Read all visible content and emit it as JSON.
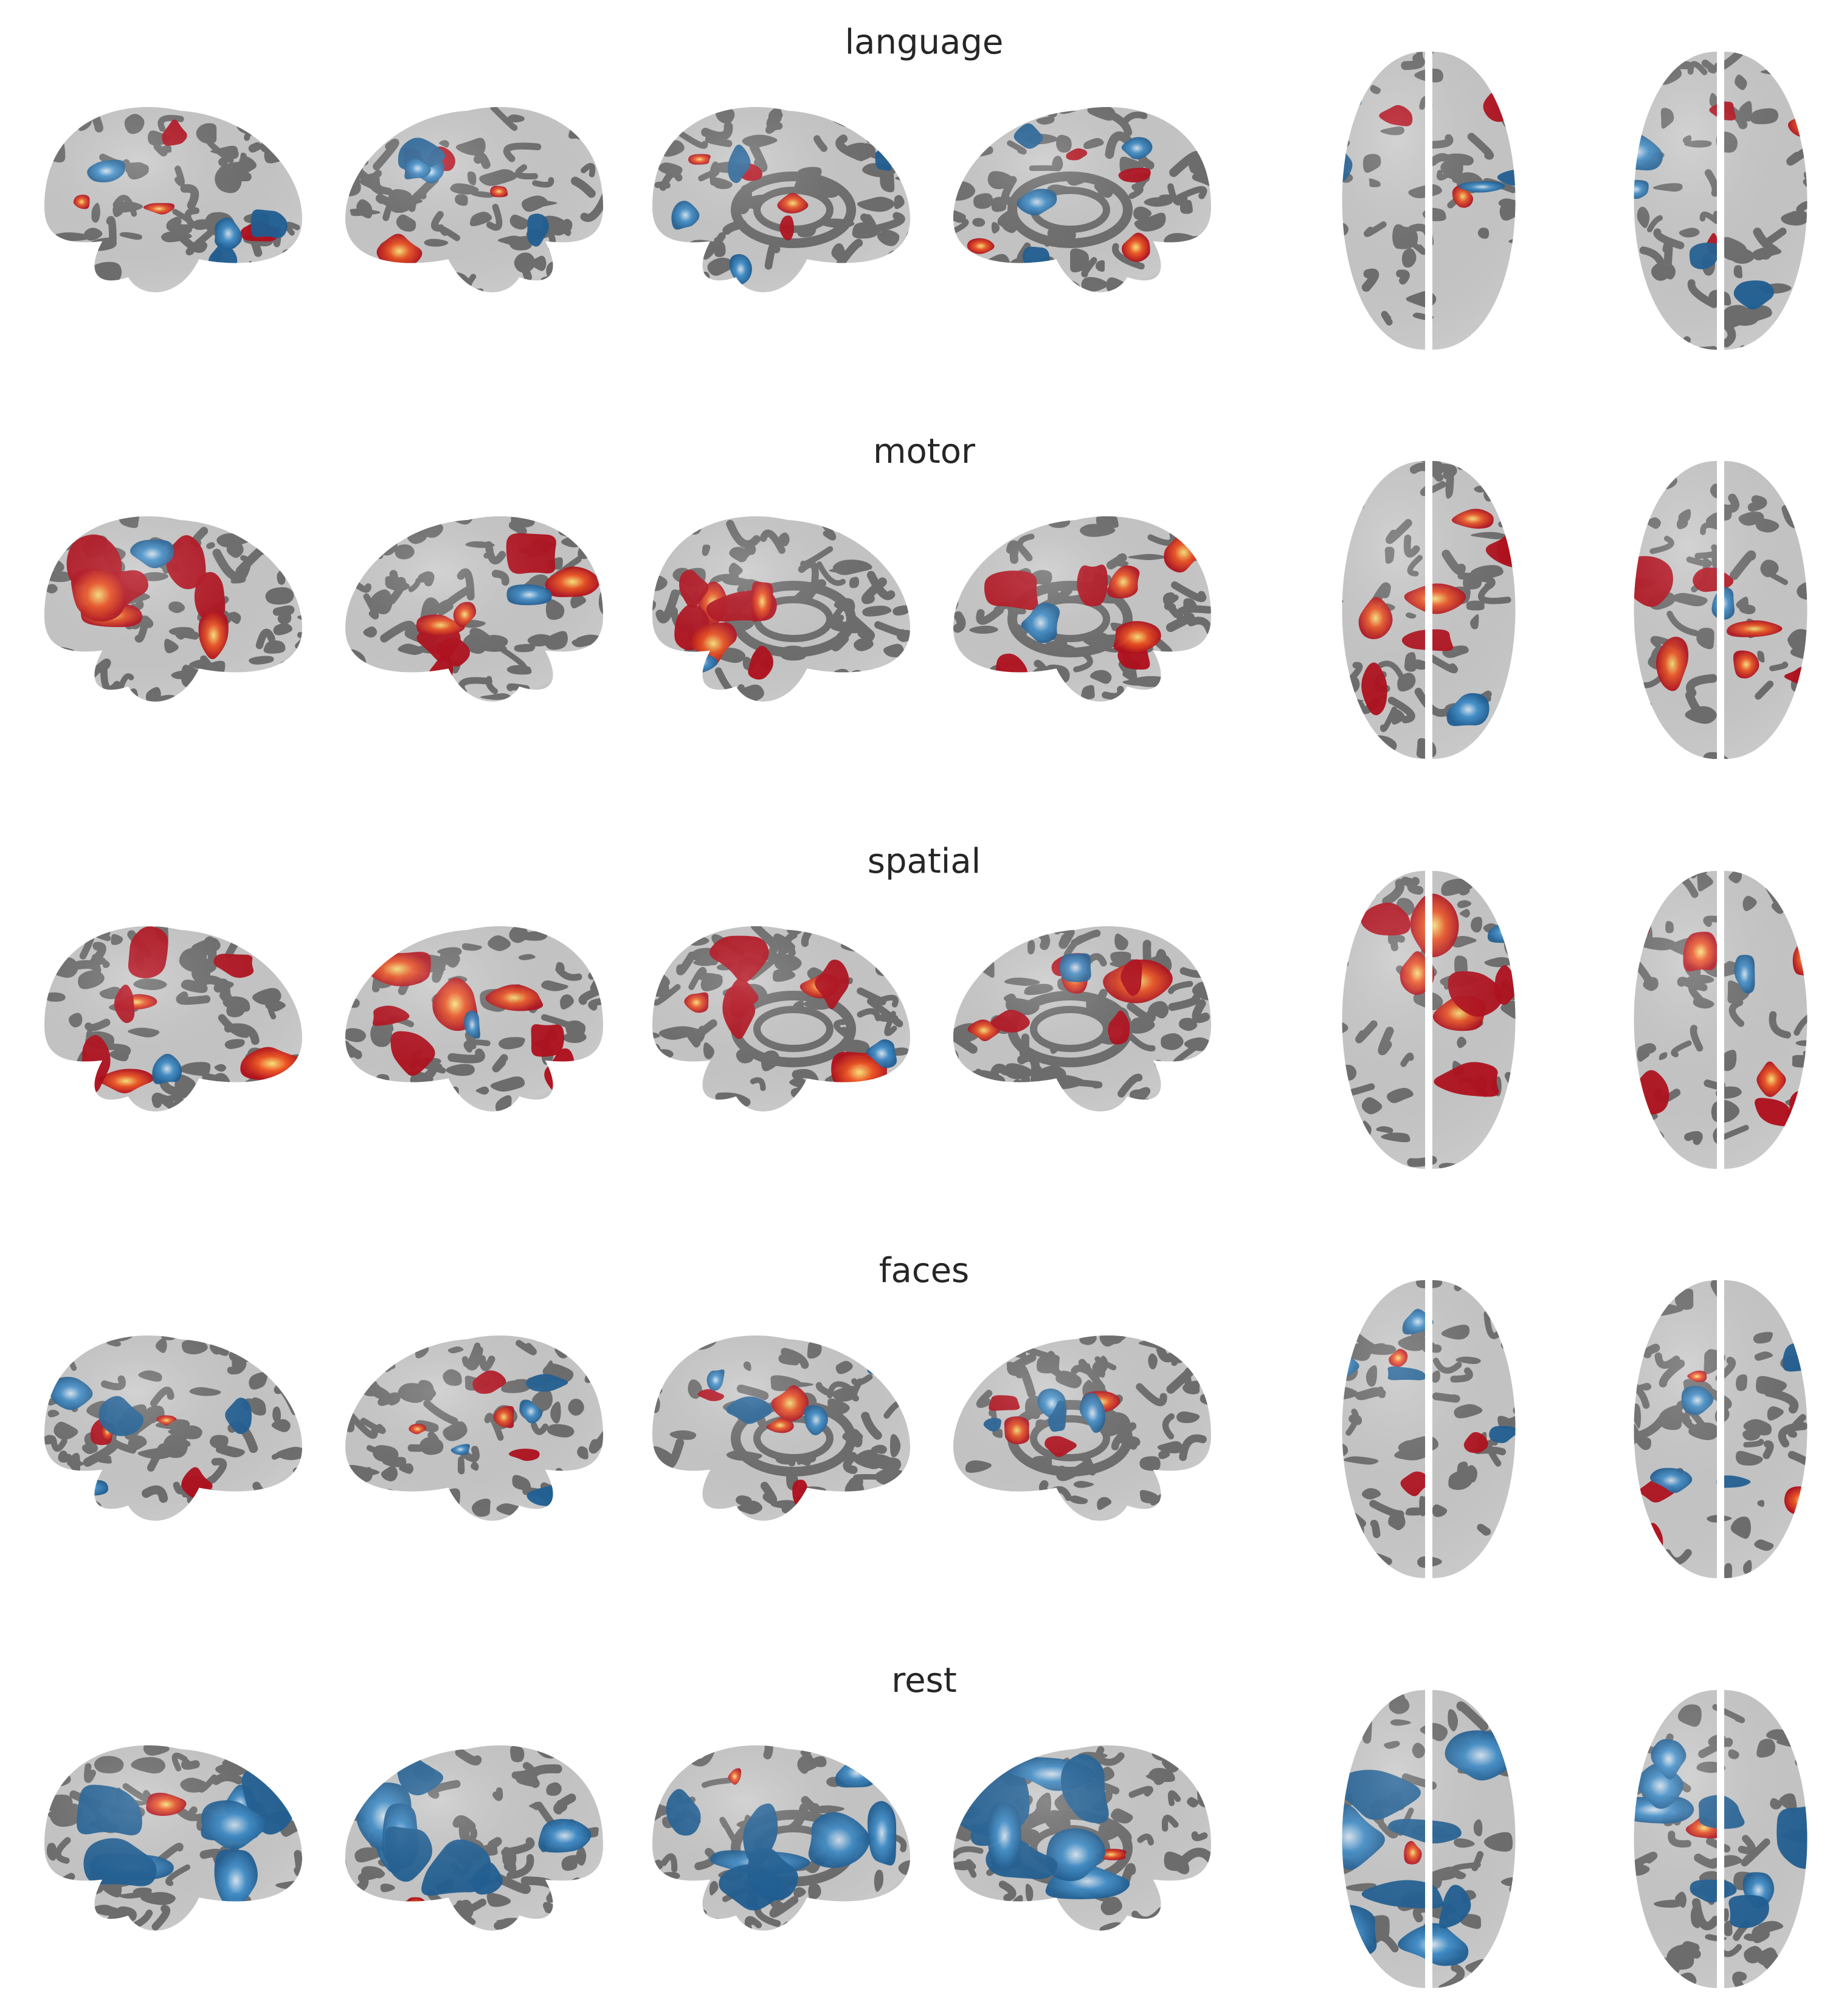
{
  "figure": {
    "rows": [
      {
        "title": "language",
        "pattern": "mixed"
      },
      {
        "title": "motor",
        "pattern": "warm"
      },
      {
        "title": "spatial",
        "pattern": "warm"
      },
      {
        "title": "faces",
        "pattern": "mixed"
      },
      {
        "title": "rest",
        "pattern": "cool"
      }
    ],
    "views": [
      "lateral-left",
      "lateral-right",
      "medial-left",
      "medial-right",
      "dorsal",
      "ventral"
    ],
    "colors": {
      "gyri": "#c9c9c9",
      "sulci": "#6e6e6e",
      "positive_low": "#b30d1a",
      "positive_mid": "#f0511f",
      "positive_high": "#ffe87a",
      "negative_low": "#1f5f95",
      "negative_mid": "#3f8fcc",
      "negative_high": "#dbe9f6"
    }
  }
}
